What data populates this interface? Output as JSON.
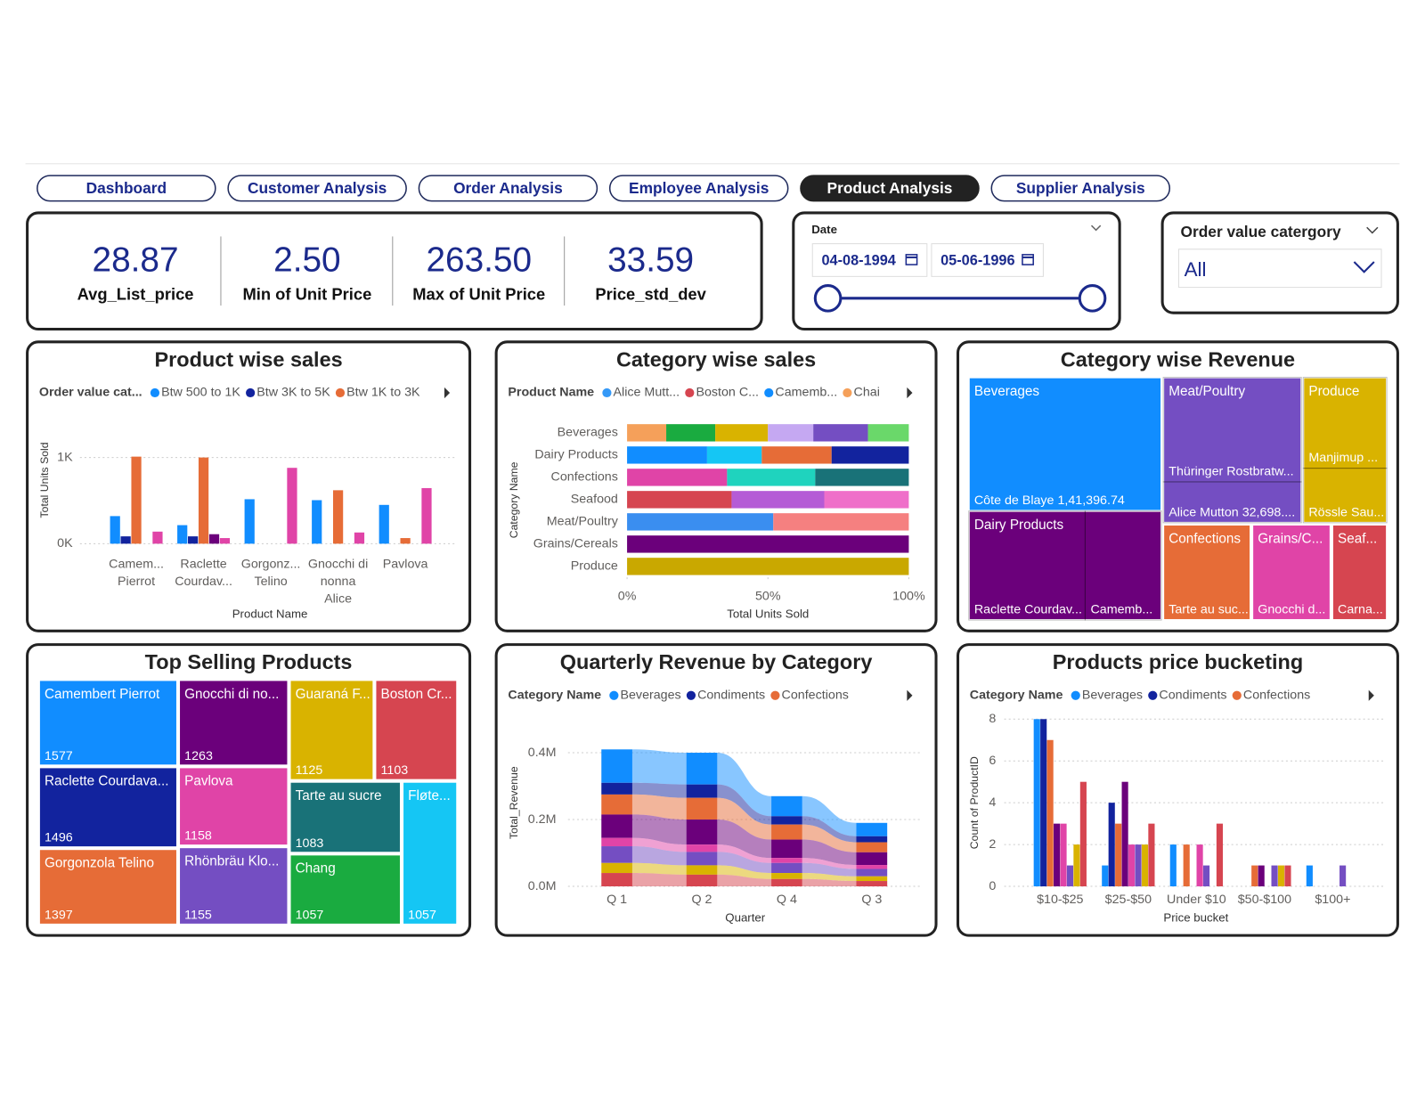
{
  "nav": {
    "tabs": [
      "Dashboard",
      "Customer Analysis",
      "Order Analysis",
      "Employee Analysis",
      "Product Analysis",
      "Supplier Analysis"
    ],
    "active": 4
  },
  "kpis": [
    {
      "value": "28.87",
      "label": "Avg_List_price"
    },
    {
      "value": "2.50",
      "label": "Min of Unit Price"
    },
    {
      "value": "263.50",
      "label": "Max of Unit Price"
    },
    {
      "value": "33.59",
      "label": "Price_std_dev"
    }
  ],
  "date_filter": {
    "label": "Date",
    "start": "04-08-1994",
    "end": "05-06-1996"
  },
  "order_filter": {
    "label": "Order value catergory",
    "value": "All"
  },
  "chart_data": [
    {
      "type": "bar",
      "title": "Product wise sales",
      "legend_title": "Order value cat...",
      "x_label": "Product Name",
      "y_label": "Total Units Sold",
      "categories": [
        [
          "Camem...",
          "Pierrot"
        ],
        [
          "Raclette",
          "Courdav..."
        ],
        [
          "Gorgonz...",
          "Telino"
        ],
        [
          "Gnocchi di",
          "nonna",
          "Alice"
        ],
        [
          "Pavlova"
        ]
      ],
      "series": [
        {
          "name": "Btw 500 to 1K",
          "color": "#118DFF",
          "values": [
            320,
            215,
            516,
            505,
            450
          ]
        },
        {
          "name": "Btw 3K to 5K",
          "color": "#12239E",
          "values": [
            85,
            85,
            null,
            null,
            null
          ]
        },
        {
          "name": "Btw 1K to 3K",
          "color": "#E66C37",
          "values": [
            1010,
            1000,
            null,
            620,
            65
          ]
        },
        {
          "name": null,
          "color": "#6B007B",
          "values": [
            null,
            110,
            null,
            null,
            null
          ]
        },
        {
          "name": null,
          "color": "#E044A7",
          "values": [
            140,
            65,
            880,
            130,
            645
          ]
        }
      ],
      "ylim": [
        0,
        1350
      ],
      "yticks": [
        {
          "value": 0,
          "label": "0K"
        },
        {
          "value": 1000,
          "label": "1K"
        }
      ],
      "grid": true
    },
    {
      "type": "stackedbar",
      "title": "Category wise sales",
      "legend_title": "Product Name",
      "x_label": "Total Units Sold",
      "y_label": "Category Name",
      "legend": [
        {
          "name": "Alice Mutt...",
          "color": "#3599F7"
        },
        {
          "name": "Boston C...",
          "color": "#D64550"
        },
        {
          "name": "Camemb...",
          "color": "#118DFF"
        },
        {
          "name": "Chai",
          "color": "#F5A05A"
        }
      ],
      "categories": [
        "Beverages",
        "Dairy Products",
        "Confections",
        "Seafood",
        "Meat/Poultry",
        "Grains/Cereals",
        "Produce"
      ],
      "segments": [
        [
          {
            "value": 13.9,
            "color": "#F5A05A"
          },
          {
            "value": 17.4,
            "color": "#1AAB40"
          },
          {
            "value": 18.7,
            "color": "#D9B300"
          },
          {
            "value": 16.1,
            "color": "#C5A8F2"
          },
          {
            "value": 19.4,
            "color": "#744EC2"
          },
          {
            "value": 14.5,
            "color": "#6AD86A"
          }
        ],
        [
          {
            "value": 28.4,
            "color": "#118DFF"
          },
          {
            "value": 19.4,
            "color": "#15C6F4"
          },
          {
            "value": 24.8,
            "color": "#E66C37"
          },
          {
            "value": 27.4,
            "color": "#12239E"
          }
        ],
        [
          {
            "value": 35.5,
            "color": "#E044A7"
          },
          {
            "value": 31.3,
            "color": "#1FD3BE"
          },
          {
            "value": 33.2,
            "color": "#197278"
          }
        ],
        [
          {
            "value": 37.1,
            "color": "#D64550"
          },
          {
            "value": 32.9,
            "color": "#B55BD6"
          },
          {
            "value": 30.0,
            "color": "#EF6FC9"
          }
        ],
        [
          {
            "value": 51.9,
            "color": "#3A8EF0"
          },
          {
            "value": 48.1,
            "color": "#F58080"
          }
        ],
        [
          {
            "value": 100,
            "color": "#6B007B"
          }
        ],
        [
          {
            "value": 100,
            "color": "#C9A800"
          }
        ]
      ],
      "xlim": [
        0,
        100
      ],
      "xticks": [
        {
          "value": 0,
          "label": "0%"
        },
        {
          "value": 50,
          "label": "50%"
        },
        {
          "value": 100,
          "label": "100%"
        }
      ]
    },
    {
      "type": "treemap",
      "title": "Category wise Revenue",
      "tiles": [
        {
          "label": "Beverages",
          "color": "#118DFF",
          "children": [
            "Côte de Blaye 1,41,396.74"
          ]
        },
        {
          "label": "Meat/Poultry",
          "color": "#744EC2",
          "children": [
            "Thüringer Rostbratw...",
            "Alice Mutton 32,698...."
          ]
        },
        {
          "label": "Produce",
          "color": "#D9B300",
          "children": [
            "Manjimup ...",
            "Rössle Sau..."
          ]
        },
        {
          "label": "Dairy Products",
          "color": "#6B007B",
          "children": [
            "Raclette Courdav...",
            "Camemb..."
          ]
        },
        {
          "label": "Confections",
          "color": "#E66C37",
          "children": [
            "Tarte au suc..."
          ]
        },
        {
          "label": "Grains/C...",
          "color": "#E044A7",
          "children": [
            "Gnocchi d..."
          ]
        },
        {
          "label": "Seaf...",
          "color": "#D64550",
          "children": [
            "Carna..."
          ]
        }
      ]
    },
    {
      "type": "treemap",
      "title": "Top Selling Products",
      "tiles": [
        {
          "label": "Camembert Pierrot",
          "value": 1577,
          "color": "#118DFF"
        },
        {
          "label": "Gnocchi di no...",
          "value": 1263,
          "color": "#6B007B"
        },
        {
          "label": "Guaraná F...",
          "value": 1125,
          "color": "#D9B300"
        },
        {
          "label": "Boston Cr...",
          "value": 1103,
          "color": "#D64550"
        },
        {
          "label": "Raclette Courdava...",
          "value": 1496,
          "color": "#12239E"
        },
        {
          "label": "Pavlova",
          "value": 1158,
          "color": "#E044A7"
        },
        {
          "label": "Tarte au sucre",
          "value": 1083,
          "color": "#197278"
        },
        {
          "label": "Fløte...",
          "value": 1057,
          "color": "#15C6F4"
        },
        {
          "label": "Gorgonzola Telino",
          "value": 1397,
          "color": "#E66C37"
        },
        {
          "label": "Rhönbräu Klo...",
          "value": 1155,
          "color": "#744EC2"
        },
        {
          "label": "Chang",
          "value": 1057,
          "color": "#1AAB40"
        }
      ]
    },
    {
      "type": "ribbon",
      "title": "Quarterly Revenue by Category",
      "legend_title": "Category Name",
      "x_label": "Quarter",
      "y_label": "Total_Revenue",
      "categories": [
        "Q 1",
        "Q 2",
        "Q 4",
        "Q 3"
      ],
      "series": [
        {
          "name": "Beverages",
          "color": "#118DFF",
          "values": [
            100000,
            95000,
            60000,
            40000
          ]
        },
        {
          "name": "Condiments",
          "color": "#12239E",
          "values": [
            35000,
            40000,
            25000,
            18000
          ]
        },
        {
          "name": "Confections",
          "color": "#E66C37",
          "values": [
            60000,
            65000,
            45000,
            30000
          ]
        },
        {
          "name": null,
          "color": "#6B007B",
          "values": [
            70000,
            75000,
            55000,
            38000
          ]
        },
        {
          "name": null,
          "color": "#E044A7",
          "values": [
            25000,
            22000,
            15000,
            12000
          ]
        },
        {
          "name": null,
          "color": "#744EC2",
          "values": [
            50000,
            40000,
            30000,
            22000
          ]
        },
        {
          "name": null,
          "color": "#D9B300",
          "values": [
            30000,
            28000,
            18000,
            14000
          ]
        },
        {
          "name": null,
          "color": "#D64550",
          "values": [
            40000,
            35000,
            22000,
            16000
          ]
        }
      ],
      "ylim": [
        0,
        480000
      ],
      "yticks": [
        {
          "value": 0,
          "label": "0.0M"
        },
        {
          "value": 200000,
          "label": "0.2M"
        },
        {
          "value": 400000,
          "label": "0.4M"
        }
      ],
      "grid": true
    },
    {
      "type": "bar",
      "title": "Products price bucketing",
      "legend_title": "Category Name",
      "x_label": "Price bucket",
      "y_label": "Count of ProductID",
      "categories": [
        "$10-$25",
        "$25-$50",
        "Under $10",
        "$50-$100",
        "$100+"
      ],
      "series": [
        {
          "name": "Beverages",
          "color": "#118DFF",
          "values": [
            8,
            1,
            2,
            null,
            1
          ]
        },
        {
          "name": "Condiments",
          "color": "#12239E",
          "values": [
            8,
            4,
            null,
            null,
            null
          ]
        },
        {
          "name": "Confections",
          "color": "#E66C37",
          "values": [
            7,
            3,
            2,
            1,
            null
          ]
        },
        {
          "name": null,
          "color": "#6B007B",
          "values": [
            3,
            5,
            null,
            1,
            null
          ]
        },
        {
          "name": null,
          "color": "#E044A7",
          "values": [
            3,
            2,
            2,
            null,
            null
          ]
        },
        {
          "name": null,
          "color": "#744EC2",
          "values": [
            1,
            2,
            1,
            1,
            1
          ]
        },
        {
          "name": null,
          "color": "#D9B300",
          "values": [
            2,
            2,
            null,
            1,
            null
          ]
        },
        {
          "name": null,
          "color": "#D64550",
          "values": [
            5,
            3,
            3,
            1,
            null
          ]
        }
      ],
      "ylim": [
        0,
        8
      ],
      "yticks": [
        0,
        2,
        4,
        6,
        8
      ],
      "grid": true
    }
  ]
}
